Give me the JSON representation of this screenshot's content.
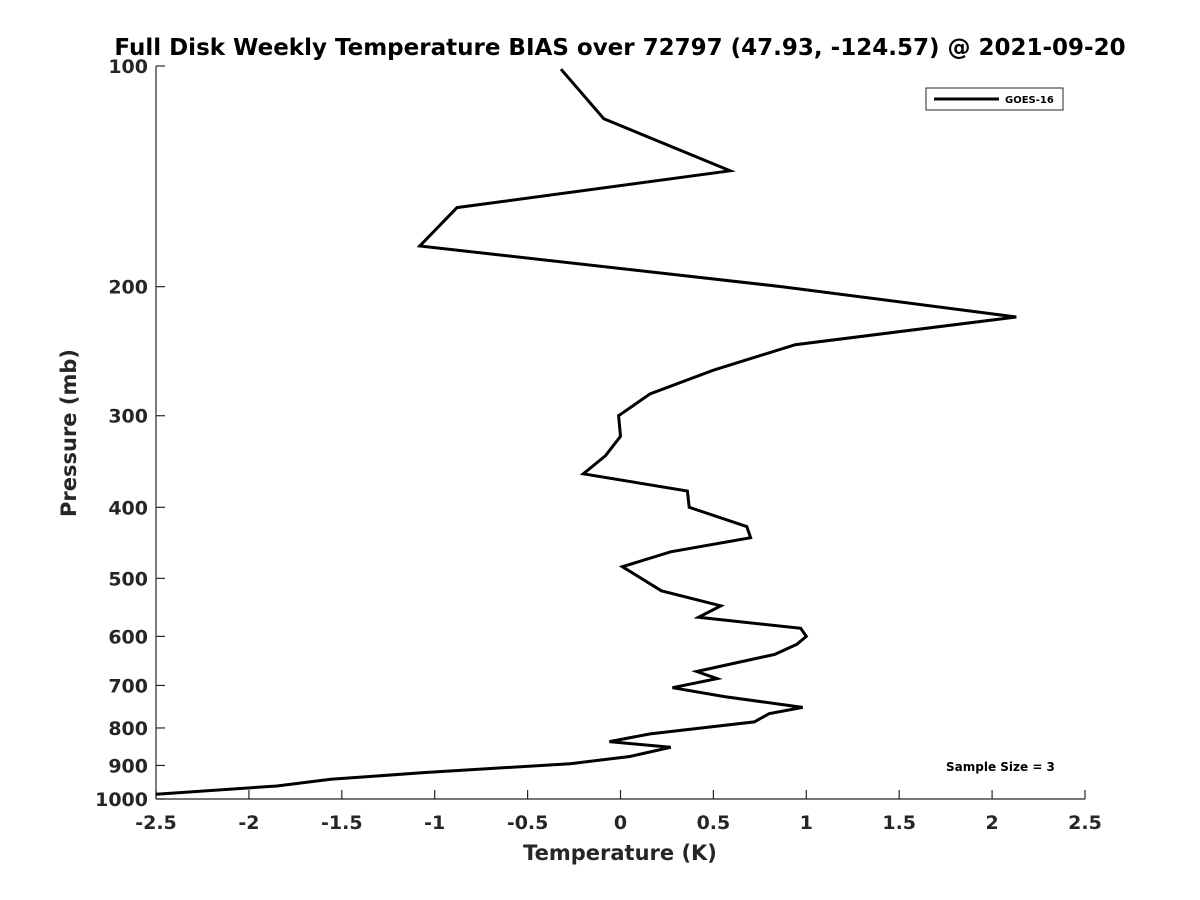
{
  "chart_data": {
    "type": "line",
    "title": "Full Disk Weekly Temperature BIAS over 72797 (47.93, -124.57) @ 2021-09-20",
    "xlabel": "Temperature (K)",
    "ylabel": "Pressure (mb)",
    "xlim": [
      -2.5,
      2.5
    ],
    "ylim": [
      100,
      1000
    ],
    "y_scale": "log",
    "y_reversed": true,
    "grid": false,
    "x_ticks": [
      "-2.5",
      "-2",
      "-1.5",
      "-1",
      "-0.5",
      "0",
      "0.5",
      "1",
      "1.5",
      "2",
      "2.5"
    ],
    "y_ticks": [
      "100",
      "200",
      "300",
      "400",
      "500",
      "600",
      "700",
      "800",
      "900",
      "1000"
    ],
    "legend": {
      "position": "top-right",
      "entries": [
        "GOES-16"
      ]
    },
    "annotation": "Sample Size = 3",
    "line_color": "#000000",
    "series": [
      {
        "name": "GOES-16",
        "x": [
          -0.32,
          -0.09,
          0.59,
          -0.88,
          -1.08,
          0.87,
          2.13,
          0.94,
          0.5,
          0.16,
          -0.01,
          0.0,
          -0.08,
          -0.2,
          0.36,
          0.37,
          0.68,
          0.7,
          0.27,
          0.01,
          0.22,
          0.54,
          0.42,
          0.97,
          1.0,
          0.95,
          0.83,
          0.41,
          0.52,
          0.28,
          0.56,
          0.98,
          0.8,
          0.72,
          0.16,
          -0.06,
          0.27,
          0.05,
          -0.27,
          -1.05,
          -1.56,
          -1.85,
          -2.5
        ],
        "y": [
          101,
          118,
          139,
          156,
          176,
          200,
          220,
          240,
          260,
          280,
          300,
          320,
          340,
          360,
          380,
          400,
          425,
          440,
          460,
          482,
          520,
          545,
          565,
          585,
          600,
          615,
          635,
          670,
          685,
          705,
          725,
          750,
          765,
          785,
          815,
          835,
          850,
          875,
          895,
          920,
          940,
          960,
          985
        ]
      }
    ]
  }
}
